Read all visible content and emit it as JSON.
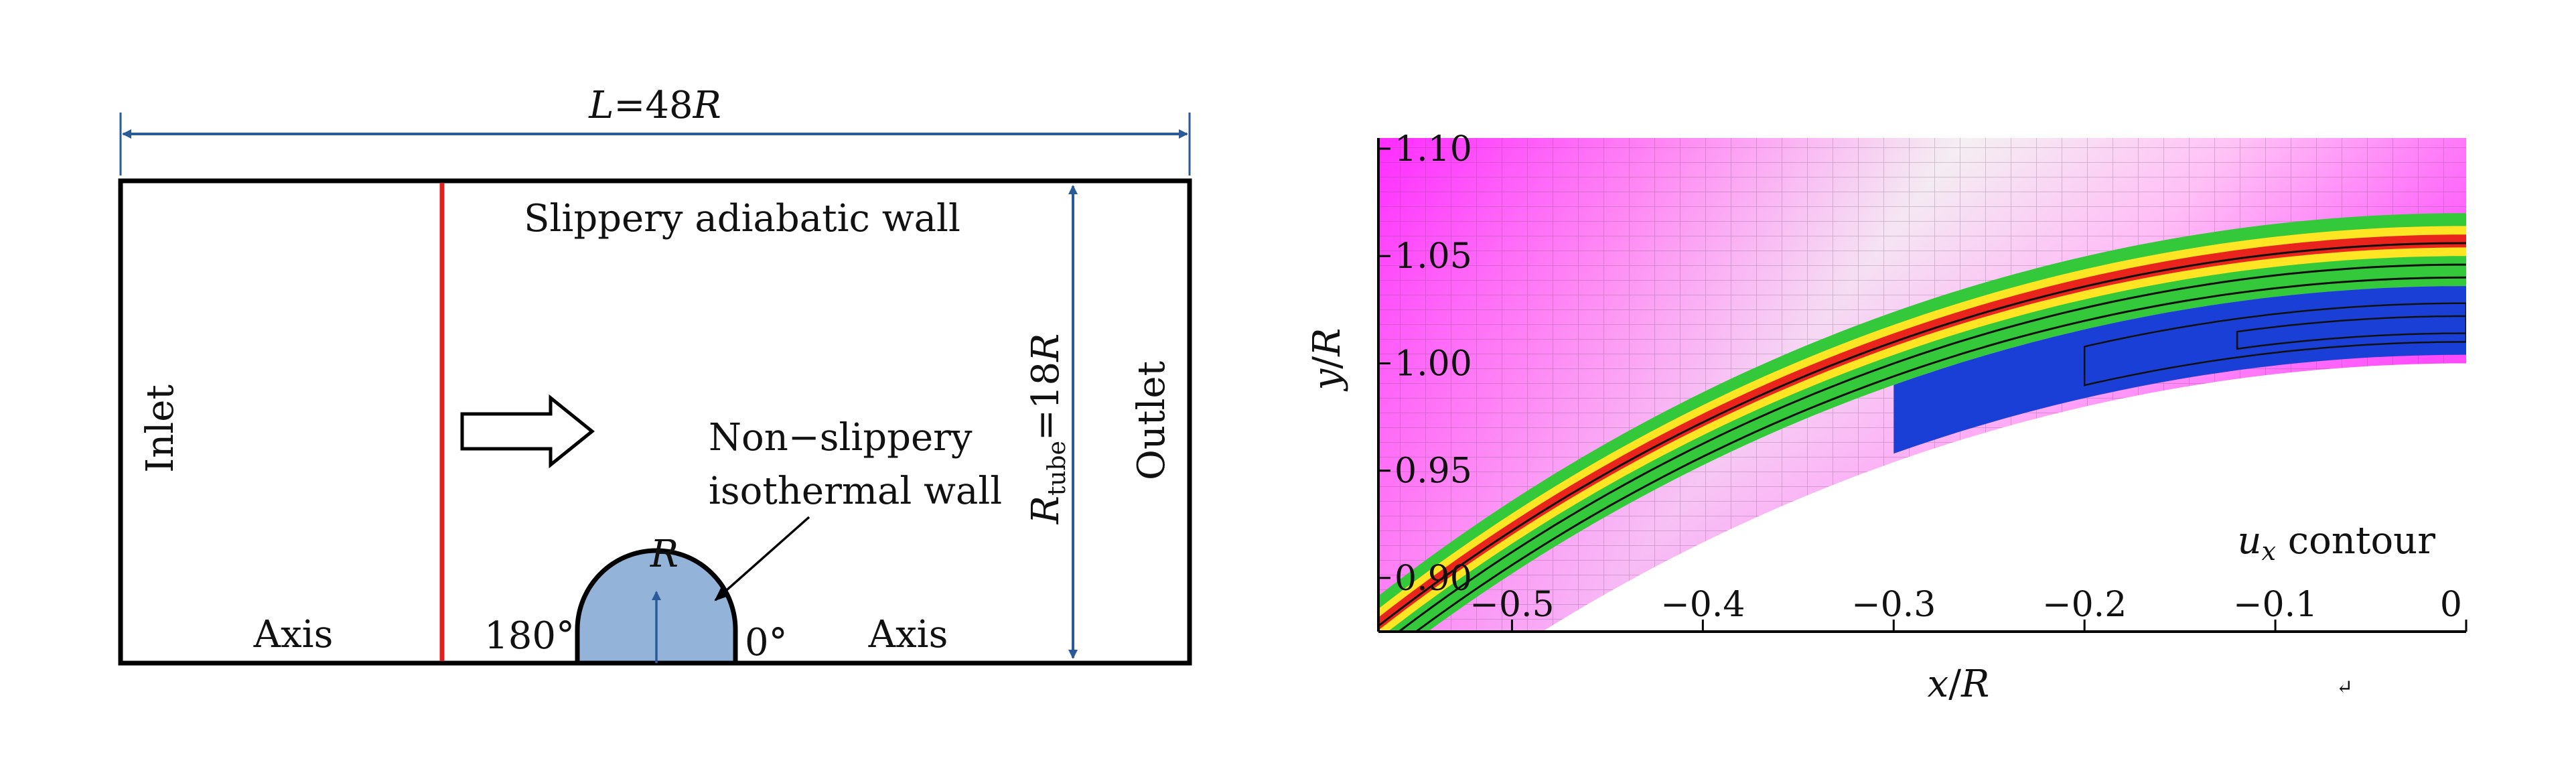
{
  "schematic": {
    "length_label": {
      "sym": "L",
      "rest": "=48",
      "sym2": "R"
    },
    "top_wall_label": "Slippery adiabatic wall",
    "inlet_label": "Inlet",
    "outlet_label": "Outlet",
    "radius_label": {
      "sym": "R",
      "sub": "tube",
      "rest": "=18",
      "sym2": "R"
    },
    "sphere_radius_label": "R",
    "wall_label_line1": "Non−slippery",
    "wall_label_line2": "isothermal wall",
    "axis_left": "Axis",
    "axis_right": "Axis",
    "angle_left": "180°",
    "angle_right": "0°",
    "colors": {
      "frame": "#000000",
      "shock_line": "#e0201c",
      "dimension": "#2a5a9a",
      "sphere_fill": "#93b3d9"
    }
  },
  "contour": {
    "xlabel": {
      "a": "x",
      "b": "/",
      "c": "R"
    },
    "ylabel": {
      "a": "y",
      "b": "/",
      "c": "R"
    },
    "legend": {
      "sym": "u",
      "sub": "x",
      "rest": " contour"
    },
    "x_range": [
      -0.57,
      0.0
    ],
    "y_range": [
      0.875,
      1.105
    ],
    "x_ticks": [
      {
        "v": -0.5,
        "label": "−0.5"
      },
      {
        "v": -0.4,
        "label": "−0.4"
      },
      {
        "v": -0.3,
        "label": "−0.3"
      },
      {
        "v": -0.2,
        "label": "−0.2"
      },
      {
        "v": -0.1,
        "label": "−0.1"
      },
      {
        "v": 0.0,
        "label": "0"
      }
    ],
    "y_ticks": [
      {
        "v": 0.9,
        "label": "0.90"
      },
      {
        "v": 0.95,
        "label": "0.95"
      },
      {
        "v": 1.0,
        "label": "1.00"
      },
      {
        "v": 1.05,
        "label": "1.05"
      },
      {
        "v": 1.1,
        "label": "1.10"
      }
    ],
    "colors": {
      "freestream": "#ff2bff",
      "mid": "#ffbff5",
      "light": "#f4f2f2",
      "green": "#33c93a",
      "yellow": "#ffe524",
      "red": "#e8241c",
      "blue": "#1a3fd6"
    }
  },
  "mark": "↵"
}
